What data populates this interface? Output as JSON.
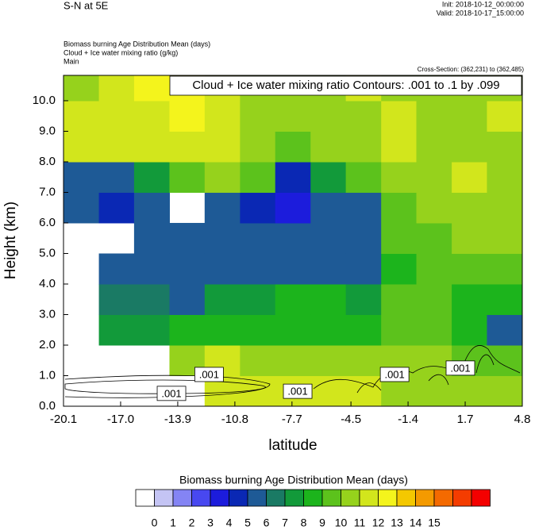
{
  "chart_data": {
    "type": "heatmap",
    "title": "S-N at 5E",
    "init": "Init: 2018-10-12_00:00:00",
    "valid": "Valid: 2018-10-17_15:00:00",
    "field_label": "Biomass burning Age Distribution Mean   (days)",
    "contour_field_label": "Cloud + Ice water mixing ratio   (g/kg)",
    "domain": "Main",
    "cross_section": "Cross-Section: (362,231) to (362,485)",
    "contour_title": "Cloud + Ice water mixing ratio Contours: .001 to .1 by .099",
    "xlabel": "latitude",
    "ylabel": "Height (km)",
    "xlim": [
      -20.1,
      4.8
    ],
    "ylim": [
      0,
      10.83
    ],
    "xticks": [
      -20.1,
      {
        "value": -17,
        "label": "-17.0"
      },
      -13.9,
      -10.8,
      -7.7,
      -4.5,
      -1.4,
      1.7,
      4.8
    ],
    "yticks": [
      {
        "value": 0,
        "label": "0.0"
      },
      {
        "value": 1,
        "label": "1.0"
      },
      {
        "value": 2,
        "label": "2.0"
      },
      {
        "value": 3,
        "label": "3.0"
      },
      {
        "value": 4,
        "label": "4.0"
      },
      {
        "value": 5,
        "label": "5.0"
      },
      {
        "value": 6,
        "label": "6.0"
      },
      {
        "value": 7,
        "label": "7.0"
      },
      {
        "value": 8,
        "label": "8.0"
      },
      {
        "value": 9,
        "label": "9.0"
      },
      {
        "value": 10,
        "label": "10.0"
      }
    ],
    "x": [
      -19.14,
      -17.22,
      -15.31,
      -13.39,
      -11.48,
      -9.56,
      -7.65,
      -5.73,
      -3.82,
      -1.9,
      0.01,
      1.93,
      3.84
    ],
    "y": [
      0.5,
      1.5,
      2.5,
      3.5,
      4.5,
      5.5,
      6.5,
      7.5,
      8.5,
      9.5,
      10.5
    ],
    "values": [
      [
        null,
        null,
        null,
        null,
        11.5,
        11.5,
        11.5,
        11.5,
        11.5,
        10.5,
        10.5,
        10.5,
        10.5
      ],
      [
        null,
        null,
        null,
        10.5,
        11.5,
        10.5,
        10.5,
        10.5,
        10.5,
        10.5,
        10.5,
        9.5,
        9.5
      ],
      [
        null,
        7.5,
        7.5,
        8.5,
        8.5,
        8.5,
        8.5,
        8.5,
        8.5,
        9.5,
        9.5,
        8.5,
        5.5
      ],
      [
        null,
        6.5,
        6.5,
        5.5,
        7.5,
        7.5,
        8.5,
        8.5,
        7.5,
        9.5,
        9.5,
        8.5,
        8.5
      ],
      [
        null,
        5.5,
        5.5,
        5.5,
        5.5,
        5.5,
        5.5,
        5.5,
        5.5,
        8.5,
        9.5,
        9.5,
        9.5
      ],
      [
        null,
        null,
        5.5,
        5.5,
        5.5,
        5.5,
        5.5,
        5.5,
        5.5,
        9.5,
        9.5,
        10.5,
        10.5
      ],
      [
        5.5,
        4.5,
        5.5,
        null,
        5.5,
        4.5,
        3.5,
        5.5,
        5.5,
        9.5,
        10.5,
        10.5,
        10.5
      ],
      [
        5.5,
        5.5,
        7.5,
        9.5,
        10.5,
        9.5,
        4.5,
        7.5,
        9.5,
        10.5,
        10.5,
        11.5,
        10.5
      ],
      [
        11.5,
        11.5,
        11.5,
        11.5,
        11.5,
        10.5,
        9.5,
        10.5,
        10.5,
        11.5,
        10.5,
        10.5,
        10.5
      ],
      [
        11.5,
        11.5,
        11.5,
        12.5,
        11.5,
        10.5,
        10.5,
        10.5,
        10.5,
        11.5,
        10.5,
        10.5,
        11.5
      ],
      [
        10.5,
        11.5,
        12.5,
        12.5,
        11.5,
        10.5,
        10.5,
        10.5,
        11.5,
        10.5,
        10.5,
        10.5,
        10.5
      ]
    ],
    "colorbar_title": "Biomass burning Age Distribution Mean  (days)",
    "levels": [
      0,
      1,
      2,
      3,
      4,
      5,
      6,
      7,
      8,
      9,
      10,
      11,
      12,
      13,
      14,
      15
    ],
    "colors": [
      "#ffffff",
      "#c4c4f4",
      "#8484f4",
      "#4848f0",
      "#1c1cdc",
      "#0a28b4",
      "#1e5a96",
      "#1a7a64",
      "#129a3a",
      "#1cb41c",
      "#5cc21c",
      "#96d21c",
      "#d2e61c",
      "#f4f41c",
      "#f4c800",
      "#f49a00",
      "#f46a00",
      "#f43c00",
      "#f40000"
    ],
    "contour_labels": [
      {
        "text": ".001",
        "x": -12.2,
        "y": 1.04
      },
      {
        "text": ".001",
        "x": -14.24,
        "y": 0.42
      },
      {
        "text": ".001",
        "x": -7.39,
        "y": 0.49
      },
      {
        "text": ".001",
        "x": -2.13,
        "y": 1.04
      },
      {
        "text": ".001",
        "x": 1.44,
        "y": 1.25
      }
    ]
  }
}
